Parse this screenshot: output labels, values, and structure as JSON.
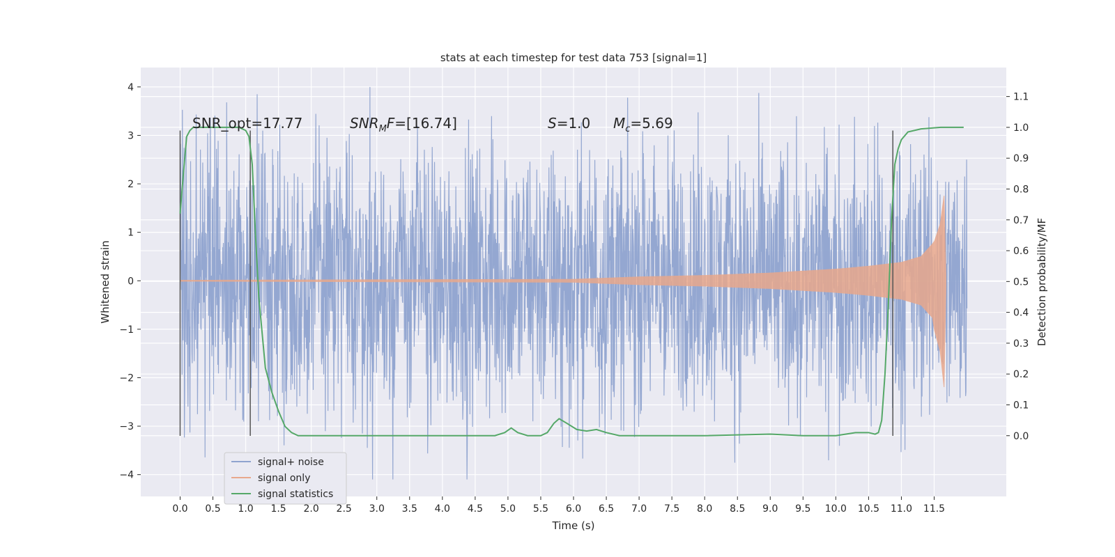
{
  "chart_data": {
    "type": "line",
    "title": "stats at each timestep for test data 753 [signal=1]",
    "xlabel": "Time (s)",
    "ylabel_left": "Whitened strain",
    "ylabel_right": "Detection probability/MF",
    "xlim": [
      -0.6,
      12.6
    ],
    "ylim_left": [
      -4.45,
      4.4
    ],
    "ylim_right": [
      -0.197,
      1.194
    ],
    "xticks": [
      0.0,
      0.5,
      1.0,
      1.5,
      2.0,
      2.5,
      3.0,
      3.5,
      4.0,
      4.5,
      5.0,
      5.5,
      6.0,
      6.5,
      7.0,
      7.5,
      8.0,
      8.5,
      9.0,
      9.5,
      10.0,
      10.5,
      11.0,
      11.5
    ],
    "xtick_labels": [
      "0.0",
      "0.5",
      "1.0",
      "1.5",
      "2.0",
      "2.5",
      "3.0",
      "3.5",
      "4.0",
      "4.5",
      "5.0",
      "5.5",
      "6.0",
      "6.5",
      "7.0",
      "7.5",
      "8.0",
      "8.5",
      "9.0",
      "9.5",
      "10.0",
      "10.5",
      "11.0",
      "11.5"
    ],
    "yticks_left": [
      4,
      3,
      2,
      1,
      0,
      -1,
      -2,
      -3,
      -4
    ],
    "ytick_labels_left": [
      "4",
      "3",
      "2",
      "1",
      "0",
      "−1",
      "−2",
      "−3",
      "−4"
    ],
    "yticks_right": [
      1.1,
      1.0,
      0.9,
      0.8,
      0.7,
      0.6,
      0.5,
      0.4,
      0.3,
      0.2,
      0.1,
      0.0
    ],
    "ytick_labels_right": [
      "1.1",
      "1.0",
      "0.9",
      "0.8",
      "0.7",
      "0.6",
      "0.5",
      "0.4",
      "0.3",
      "0.2",
      "0.1",
      "0.0"
    ],
    "grid": true,
    "legend_position": "lower-left",
    "annotations": {
      "snr_opt": "SNR_opt=17.77",
      "snr_mf": "=[16.74]",
      "s": "=1.0",
      "mc": "=5.69"
    },
    "vertical_lines_s": [
      0.0,
      1.07,
      10.87
    ],
    "series": [
      {
        "name": "signal+ noise",
        "color": "#8fa3cf",
        "axis": "left",
        "t_start": 0.0,
        "t_end": 12.0,
        "envelope_typical": 1.9,
        "envelope_max": 4.0,
        "envelope_min": -4.1
      },
      {
        "name": "signal only",
        "color": "#e8a88c",
        "axis": "left",
        "t": [
          0.0,
          6.0,
          7.0,
          8.0,
          9.0,
          10.0,
          10.5,
          11.0,
          11.3,
          11.5,
          11.6,
          11.65,
          11.68
        ],
        "amplitude": [
          0.01,
          0.03,
          0.08,
          0.11,
          0.16,
          0.24,
          0.3,
          0.38,
          0.5,
          0.8,
          1.2,
          1.8,
          0.1
        ]
      },
      {
        "name": "signal statistics",
        "color": "#55a868",
        "axis": "right",
        "t": [
          0.0,
          0.05,
          0.1,
          0.15,
          0.2,
          0.3,
          0.5,
          0.7,
          0.9,
          1.0,
          1.05,
          1.1,
          1.15,
          1.2,
          1.3,
          1.4,
          1.5,
          1.6,
          1.7,
          1.8,
          2.0,
          3.0,
          4.0,
          4.8,
          4.95,
          5.05,
          5.15,
          5.3,
          5.5,
          5.6,
          5.7,
          5.78,
          5.9,
          6.05,
          6.2,
          6.35,
          6.5,
          6.7,
          7.0,
          8.0,
          9.0,
          9.5,
          9.8,
          10.0,
          10.3,
          10.5,
          10.6,
          10.65,
          10.7,
          10.75,
          10.8,
          10.85,
          10.9,
          10.95,
          11.0,
          11.1,
          11.3,
          11.6,
          11.9,
          11.95
        ],
        "values": [
          0.72,
          0.85,
          0.97,
          0.99,
          1.0,
          1.0,
          1.0,
          1.0,
          1.0,
          0.99,
          0.97,
          0.88,
          0.65,
          0.45,
          0.22,
          0.14,
          0.08,
          0.03,
          0.01,
          0.0,
          0.0,
          0.0,
          0.0,
          0.0,
          0.01,
          0.025,
          0.01,
          0.0,
          0.0,
          0.01,
          0.04,
          0.055,
          0.04,
          0.02,
          0.015,
          0.02,
          0.01,
          0.0,
          0.0,
          0.0,
          0.005,
          0.0,
          0.0,
          0.0,
          0.01,
          0.01,
          0.005,
          0.01,
          0.05,
          0.2,
          0.42,
          0.7,
          0.88,
          0.93,
          0.96,
          0.985,
          0.995,
          1.0,
          1.0,
          1.0
        ]
      }
    ]
  }
}
